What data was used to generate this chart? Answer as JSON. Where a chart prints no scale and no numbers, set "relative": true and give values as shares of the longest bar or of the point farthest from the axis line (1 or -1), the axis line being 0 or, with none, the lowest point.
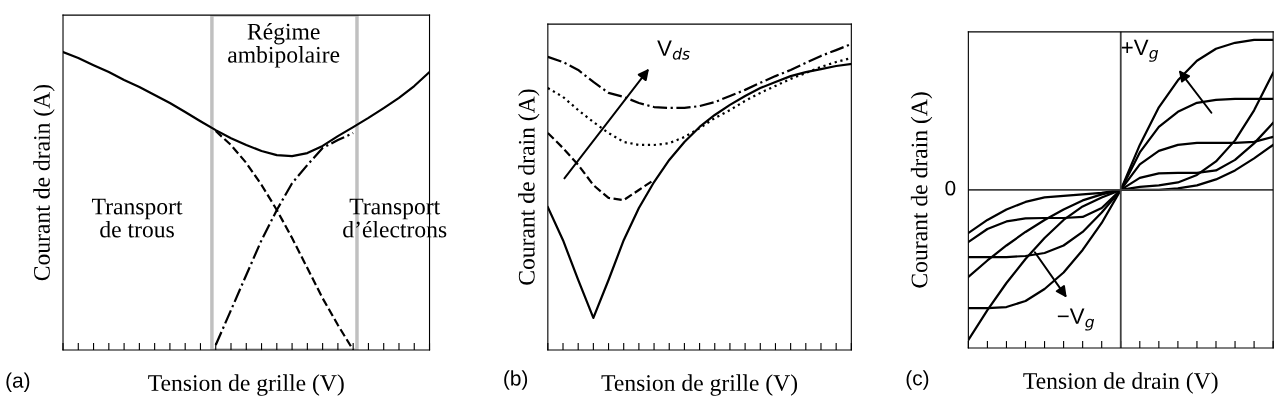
{
  "chart_data": [
    {
      "type": "line",
      "relative": true,
      "xlabel": "Tension de grille (V)",
      "ylabel": "Courant de drain (A)",
      "categories": [
        null,
        null,
        null,
        null,
        null,
        null,
        null,
        null,
        null,
        null,
        null,
        null,
        null,
        null,
        null,
        null,
        null,
        null,
        null,
        null,
        null,
        null,
        null,
        null,
        null
      ],
      "series": [
        {
          "color": "#000000",
          "line_style": "solid",
          "values": [
            1.0,
            0.98,
            0.956,
            0.933,
            0.906,
            0.883,
            0.856,
            0.829,
            0.799,
            0.768,
            0.738,
            0.711,
            0.688,
            0.668,
            0.654,
            0.651,
            0.661,
            0.685,
            0.718,
            0.748,
            0.779,
            0.812,
            0.846,
            0.886,
            0.933
          ]
        },
        {
          "color": "#000000",
          "line_style": "dashed",
          "values": [
            null,
            null,
            null,
            null,
            null,
            null,
            null,
            null,
            null,
            null,
            0.735,
            0.688,
            0.628,
            0.554,
            0.47,
            0.376,
            0.275,
            0.174,
            0.084,
            0.0,
            null,
            null,
            null,
            null,
            null
          ]
        },
        {
          "color": "#000000",
          "line_style": "dashdot",
          "values": [
            null,
            null,
            null,
            null,
            null,
            null,
            null,
            null,
            null,
            null,
            0.017,
            0.134,
            0.252,
            0.369,
            0.47,
            0.56,
            0.621,
            0.678,
            0.705,
            0.728,
            null,
            null,
            null,
            null,
            null
          ]
        }
      ],
      "annotations": [
        "(a)",
        "Régime\nambipolaire",
        "Transport\nde trous",
        "Transport\nd’électrons"
      ]
    },
    {
      "type": "line",
      "relative": true,
      "xlabel": "Tension de grille (V)",
      "ylabel": "Courant de drain (A)",
      "categories": [
        null,
        null,
        null,
        null,
        null,
        null,
        null,
        null,
        null,
        null,
        null,
        null,
        null,
        null,
        null,
        null,
        null,
        null,
        null,
        null,
        null
      ],
      "series": [
        {
          "color": "#000000",
          "line_style": "solid",
          "values": [
            0.467,
            0.359,
            0.229,
            0.105,
            0.229,
            0.359,
            0.464,
            0.549,
            0.621,
            0.68,
            0.729,
            0.768,
            0.801,
            0.83,
            0.856,
            0.876,
            0.895,
            0.908,
            0.918,
            0.928,
            0.935
          ]
        },
        {
          "color": "#000000",
          "line_style": "dashed",
          "values": [
            0.709,
            0.66,
            0.605,
            0.539,
            0.497,
            0.49,
            0.523,
            0.556,
            null,
            null,
            null,
            null,
            null,
            null,
            null,
            null,
            null,
            null,
            null,
            null,
            null
          ]
        },
        {
          "color": "#000000",
          "line_style": "dotted",
          "values": [
            0.856,
            0.827,
            0.784,
            0.745,
            0.709,
            0.68,
            0.67,
            0.67,
            0.676,
            0.696,
            0.725,
            0.758,
            0.784,
            0.814,
            0.84,
            0.863,
            0.886,
            0.905,
            0.925,
            0.941,
            0.954
          ]
        },
        {
          "color": "#000000",
          "line_style": "dashdot",
          "values": [
            0.958,
            0.941,
            0.915,
            0.876,
            0.84,
            0.827,
            0.807,
            0.794,
            0.791,
            0.791,
            0.797,
            0.81,
            0.83,
            0.85,
            0.873,
            0.895,
            0.915,
            0.938,
            0.961,
            0.98,
            1.0
          ]
        }
      ],
      "annotations": [
        "(b)",
        "V$_{ds}$"
      ]
    },
    {
      "type": "line",
      "relative": true,
      "xlabel": "Tension de drain (V)",
      "ylabel": "Courant de drain (A)",
      "categories": [
        null,
        null,
        null,
        null,
        null,
        null,
        null,
        null,
        null,
        null,
        null,
        null,
        null,
        null,
        null,
        null,
        null
      ],
      "series": [
        {
          "color": "#000000",
          "line_style": "solid",
          "values": [
            -0.287,
            -0.2,
            -0.13,
            -0.08,
            -0.05,
            -0.04,
            -0.03,
            -0.02,
            0,
            0.3,
            0.55,
            0.73,
            0.86,
            0.94,
            0.98,
            1.0,
            1.0
          ]
        },
        {
          "color": "#000000",
          "line_style": "solid",
          "values": [
            -0.347,
            -0.26,
            -0.21,
            -0.19,
            -0.187,
            -0.187,
            -0.18,
            -0.12,
            0,
            0.25,
            0.42,
            0.52,
            0.58,
            0.6,
            0.607,
            0.607,
            0.607
          ]
        },
        {
          "color": "#000000",
          "line_style": "solid",
          "values": [
            -0.447,
            -0.447,
            -0.447,
            -0.44,
            -0.42,
            -0.37,
            -0.28,
            -0.15,
            0,
            0.17,
            0.26,
            0.3,
            0.313,
            0.313,
            0.313,
            0.32,
            0.353
          ]
        },
        {
          "color": "#000000",
          "line_style": "solid",
          "values": [
            -0.58,
            -0.47,
            -0.37,
            -0.28,
            -0.2,
            -0.13,
            -0.07,
            -0.03,
            0,
            0.08,
            0.11,
            0.113,
            0.113,
            0.13,
            0.2,
            0.31,
            0.447
          ]
        },
        {
          "color": "#000000",
          "line_style": "solid",
          "values": [
            -0.787,
            -0.787,
            -0.78,
            -0.74,
            -0.66,
            -0.55,
            -0.4,
            -0.22,
            0,
            0.02,
            0.03,
            0.05,
            0.1,
            0.19,
            0.33,
            0.53,
            0.78
          ]
        },
        {
          "color": "#000000",
          "line_style": "solid",
          "values": [
            -1.0,
            -0.8,
            -0.62,
            -0.46,
            -0.32,
            -0.2,
            -0.11,
            -0.05,
            0,
            0.0,
            0.0,
            0.01,
            0.03,
            0.07,
            0.13,
            0.21,
            0.3
          ]
        }
      ],
      "ref_lines": [
        {
          "axis": "y",
          "value": 0,
          "color": "#404040"
        }
      ],
      "annotations": [
        "(c)",
        "+V$_{g}$",
        "−V$_{g}$",
        "0"
      ]
    }
  ]
}
